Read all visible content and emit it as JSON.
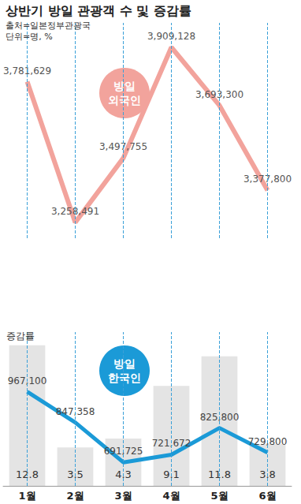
{
  "chart_data": [
    {
      "type": "line",
      "title": "상반기 방일 관광객 수 및 증감률",
      "subtitle": [
        "출처=일본정부관광국",
        "단위=명, %"
      ],
      "categories": [
        "1월",
        "2월",
        "3월",
        "4월",
        "5월",
        "6월"
      ],
      "series": [
        {
          "name": "방일 외국인",
          "color": "#f2a39c",
          "values": [
            3781629,
            3258491,
            3497755,
            3909128,
            3693300,
            3377800
          ],
          "value_labels": [
            "3,781,629",
            "3,258,491",
            "3,497,755",
            "3,909,128",
            "3,693,300",
            "3,377,800"
          ]
        }
      ],
      "ylim": [
        3200000,
        4000000
      ],
      "grid": false,
      "data_labels": true,
      "tick_labels": false
    },
    {
      "type": "bar",
      "categories": [
        "1월",
        "2월",
        "3월",
        "4월",
        "5월",
        "6월"
      ],
      "series": [
        {
          "name": "증감률",
          "type": "bar",
          "color": "#e4e4e4",
          "values": [
            12.8,
            3.5,
            4.3,
            9.1,
            11.8,
            3.8
          ]
        },
        {
          "name": "방일 한국인",
          "type": "line",
          "axis": "y2",
          "color": "#1b9ad7",
          "values": [
            967100,
            847358,
            691725,
            721672,
            825800,
            729800
          ],
          "value_labels": [
            "967,100",
            "847,358",
            "691,725",
            "721,672",
            "825,800",
            "729,800"
          ]
        }
      ],
      "ylim": [
        0,
        14
      ],
      "y2lim": [
        600000,
        1200000
      ],
      "grid": false,
      "data_labels": true,
      "tick_labels": "x"
    }
  ]
}
